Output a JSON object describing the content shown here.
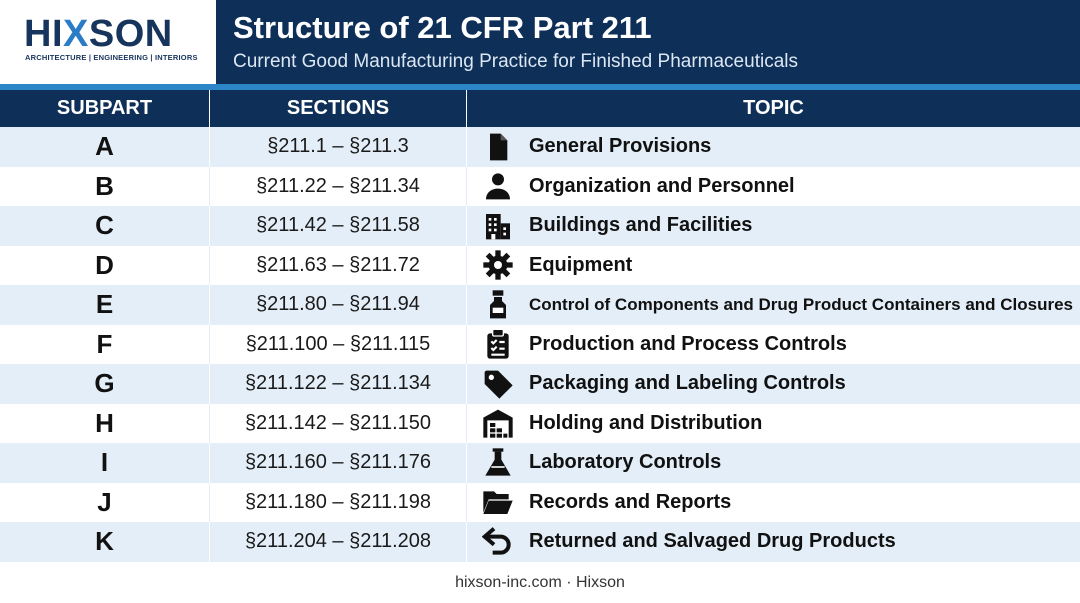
{
  "logo": {
    "word_a": "HI",
    "word_x": "X",
    "word_b": "SON",
    "tagline": "ARCHITECTURE | ENGINEERING | INTERIORS"
  },
  "title": "Structure of 21 CFR Part 211",
  "subtitle": "Current Good Manufacturing Practice for Finished Pharmaceuticals",
  "columns": {
    "subpart": "SUBPART",
    "sections": "SECTIONS",
    "topic": "TOPIC"
  },
  "rows": [
    {
      "subpart": "A",
      "sections": "§211.1 – §211.3",
      "topic": "General Provisions",
      "icon": "document-icon"
    },
    {
      "subpart": "B",
      "sections": "§211.22 – §211.34",
      "topic": "Organization and Personnel",
      "icon": "person-icon"
    },
    {
      "subpart": "C",
      "sections": "§211.42 – §211.58",
      "topic": "Buildings and Facilities",
      "icon": "building-icon"
    },
    {
      "subpart": "D",
      "sections": "§211.63 – §211.72",
      "topic": "Equipment",
      "icon": "gear-icon"
    },
    {
      "subpart": "E",
      "sections": "§211.80 – §211.94",
      "topic": "Control of Components and Drug Product Containers and Closures",
      "icon": "bottle-icon"
    },
    {
      "subpart": "F",
      "sections": "§211.100 – §211.115",
      "topic": "Production and Process Controls",
      "icon": "clipboard-check-icon"
    },
    {
      "subpart": "G",
      "sections": "§211.122 – §211.134",
      "topic": "Packaging and Labeling Controls",
      "icon": "tag-icon"
    },
    {
      "subpart": "H",
      "sections": "§211.142 – §211.150",
      "topic": "Holding and Distribution",
      "icon": "warehouse-icon"
    },
    {
      "subpart": "I",
      "sections": "§211.160 – §211.176",
      "topic": "Laboratory Controls",
      "icon": "flask-icon"
    },
    {
      "subpart": "J",
      "sections": "§211.180 – §211.198",
      "topic": "Records and Reports",
      "icon": "folder-open-icon"
    },
    {
      "subpart": "K",
      "sections": "§211.204 – §211.208",
      "topic": "Returned and Salvaged Drug Products",
      "icon": "return-arrow-icon"
    }
  ],
  "footer": "hixson-inc.com · Hixson",
  "colors": {
    "navy": "#0e2f57",
    "accent": "#2d86c8",
    "row_alt": "#e3eef8"
  }
}
